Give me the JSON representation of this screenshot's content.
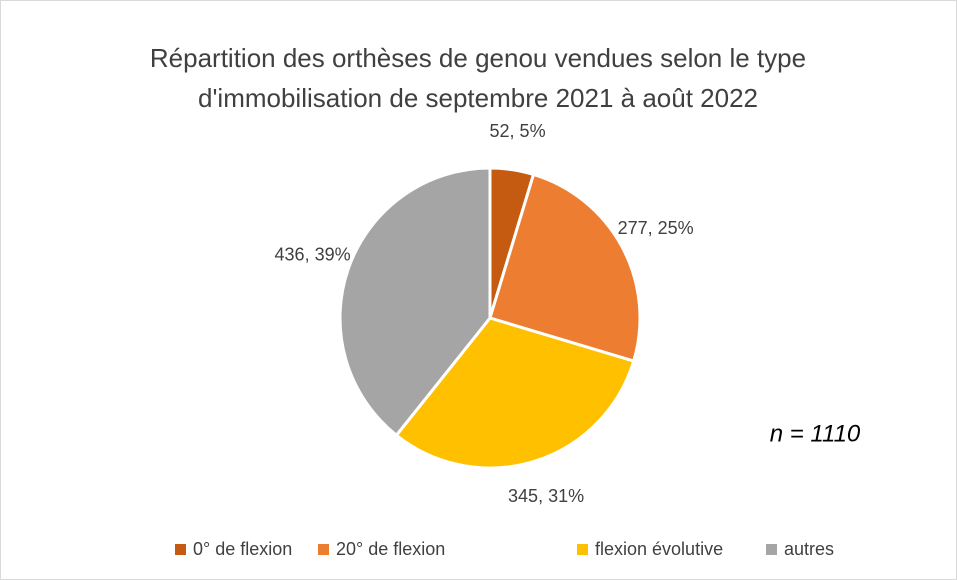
{
  "chart_data": {
    "type": "pie",
    "title": [
      "Répartition des orthèses de genou vendues selon le type",
      "d'immobilisation de septembre 2021 à août 2022"
    ],
    "categories": [
      "0° de flexion",
      "20° de flexion",
      "flexion évolutive",
      "autres"
    ],
    "values": [
      52,
      277,
      345,
      436
    ],
    "value_labels": [
      "52, 5%",
      "277, 25%",
      "345, 31%",
      "436, 39%"
    ],
    "colors": [
      "#c55a11",
      "#ed7d31",
      "#ffc000",
      "#a5a5a5"
    ],
    "annotation": "n = 1110",
    "legend": "bottom"
  }
}
